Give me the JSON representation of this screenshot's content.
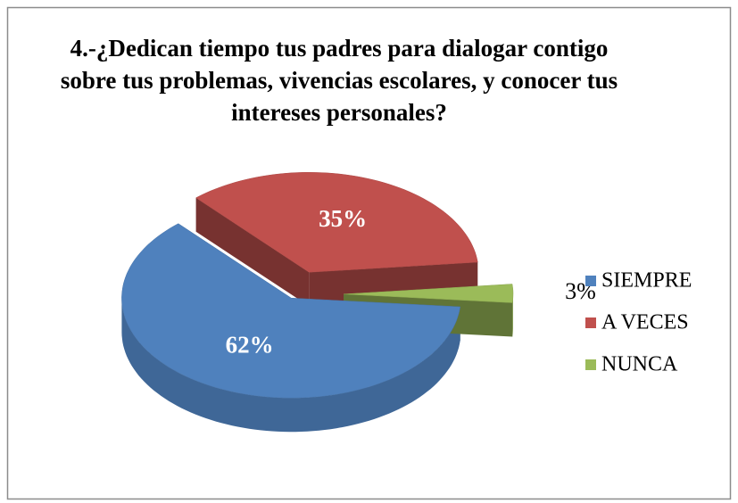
{
  "chart_data": {
    "type": "pie",
    "title": "4.-¿Dedican tiempo tus padres para dialogar contigo sobre tus problemas, vivencias escolares, y conocer tus intereses personales?",
    "categories": [
      "SIEMPRE",
      "A VECES",
      "NUNCA"
    ],
    "values": [
      62,
      35,
      3
    ],
    "value_labels": [
      "62%",
      "35%",
      "3%"
    ],
    "colors": [
      "#4f81bd",
      "#c0504d",
      "#9bbb59"
    ],
    "legend": "right"
  }
}
